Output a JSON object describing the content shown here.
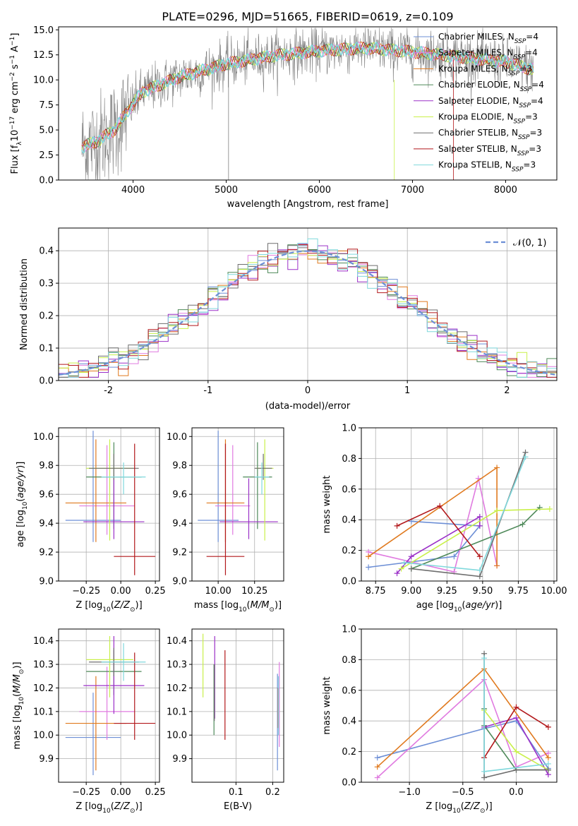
{
  "figure_title": "PLATE=0296, MJD=51665, FIBERID=0619, z=0.109",
  "colors": {
    "chabrier_miles": "#6d8fd6",
    "salpeter_miles": "#e07be0",
    "kroupa_miles": "#e07a1f",
    "chabrier_elodie": "#4f8a5a",
    "salpeter_elodie": "#9b30c8",
    "kroupa_elodie": "#c9f04a",
    "chabrier_stelib": "#6e6e6e",
    "salpeter_stelib": "#b2181b",
    "kroupa_stelib": "#7fd8dc",
    "gaussian": "#6d8fd6",
    "grid": "#b0b0b0"
  },
  "chart_data": [
    {
      "id": "spectrum",
      "type": "line",
      "title": "PLATE=0296, MJD=51665, FIBERID=0619, z=0.109",
      "xlabel": "wavelength [Angstrom, rest frame]",
      "ylabel": "Flux [f_λ 10^-17 erg cm^-2 s^-1 A^-1]",
      "xlim": [
        3200,
        8550
      ],
      "ylim": [
        0,
        15.3
      ],
      "xticks": [
        4000,
        5000,
        6000,
        7000,
        8000
      ],
      "yticks": [
        0.0,
        2.5,
        5.0,
        7.5,
        10.0,
        12.5,
        15.0
      ],
      "grid": false,
      "legend_position": "top-right",
      "legend": [
        {
          "label": "Chabrier MILES, N",
          "sub": "SSP",
          "tail": "=4",
          "color_key": "chabrier_miles"
        },
        {
          "label": "Salpeter MILES, N",
          "sub": "SSP",
          "tail": "=4",
          "color_key": "salpeter_miles"
        },
        {
          "label": "Kroupa MILES, N",
          "sub": "SSP",
          "tail": "=3",
          "color_key": "kroupa_miles"
        },
        {
          "label": "Chabrier ELODIE, N",
          "sub": "SSP",
          "tail": "=4",
          "color_key": "chabrier_elodie"
        },
        {
          "label": "Salpeter ELODIE, N",
          "sub": "SSP",
          "tail": "=4",
          "color_key": "salpeter_elodie"
        },
        {
          "label": "Kroupa ELODIE, N",
          "sub": "SSP",
          "tail": "=3",
          "color_key": "kroupa_elodie"
        },
        {
          "label": "Chabrier STELIB, N",
          "sub": "SSP",
          "tail": "=3",
          "color_key": "chabrier_stelib"
        },
        {
          "label": "Salpeter STELIB, N",
          "sub": "SSP",
          "tail": "=3",
          "color_key": "salpeter_stelib"
        },
        {
          "label": "Kroupa STELIB, N",
          "sub": "SSP",
          "tail": "=3",
          "color_key": "kroupa_stelib"
        }
      ],
      "continuum": [
        [
          3450,
          3.3
        ],
        [
          3600,
          3.8
        ],
        [
          3800,
          5.0
        ],
        [
          3950,
          7.0
        ],
        [
          4100,
          8.8
        ],
        [
          4500,
          10.3
        ],
        [
          5000,
          11.6
        ],
        [
          5500,
          12.4
        ],
        [
          6000,
          12.9
        ],
        [
          6500,
          13.2
        ],
        [
          7000,
          12.8
        ],
        [
          7500,
          12.3
        ],
        [
          8000,
          11.8
        ],
        [
          8300,
          11.0
        ]
      ]
    },
    {
      "id": "residuals",
      "type": "line",
      "xlabel": "(data-model)/error",
      "ylabel": "Normed distribution",
      "xlim": [
        -2.5,
        2.5
      ],
      "ylim": [
        0,
        0.47
      ],
      "xticks": [
        -2,
        -1,
        0,
        1,
        2
      ],
      "yticks": [
        0.0,
        0.1,
        0.2,
        0.3,
        0.4
      ],
      "grid": true,
      "legend_position": "top-right",
      "legend": [
        {
          "label": "𝒩(0, 1)",
          "color_key": "gaussian",
          "dashed": true
        }
      ]
    },
    {
      "id": "age_vs_Z",
      "type": "scatter",
      "xlabel": "Z [log10(Z/Z⊙)]",
      "ylabel": "age [log10(age/yr)]",
      "xlim": [
        -0.45,
        0.28
      ],
      "ylim": [
        9.0,
        10.06
      ],
      "xticks": [
        -0.25,
        0.0,
        0.25
      ],
      "xticklabels": [
        "−0.25",
        "0.00",
        "0.25"
      ],
      "yticks": [
        9.0,
        9.2,
        9.4,
        9.6,
        9.8,
        10.0
      ],
      "yticklabels": [
        "9.0",
        "9.2",
        "9.4",
        "9.6",
        "9.8",
        "10.0"
      ],
      "grid": true,
      "points": [
        {
          "c": "chabrier_miles",
          "x": -0.2,
          "xerr": 0.2,
          "y": 9.42,
          "yerr": [
            0.15,
            0.62
          ]
        },
        {
          "c": "salpeter_miles",
          "x": -0.1,
          "xerr": 0.2,
          "y": 9.52,
          "yerr": [
            0.2,
            0.42
          ]
        },
        {
          "c": "kroupa_miles",
          "x": -0.18,
          "xerr": 0.22,
          "y": 9.54,
          "yerr": [
            0.27,
            0.44
          ]
        },
        {
          "c": "chabrier_elodie",
          "x": -0.05,
          "xerr": 0.2,
          "y": 9.72,
          "yerr": [
            0.36,
            0.24
          ]
        },
        {
          "c": "salpeter_elodie",
          "x": -0.05,
          "xerr": 0.22,
          "y": 9.41,
          "yerr": [
            0.12,
            0.3
          ]
        },
        {
          "c": "kroupa_elodie",
          "x": -0.08,
          "xerr": 0.17,
          "y": 9.78,
          "yerr": [
            0.5,
            0.2
          ]
        },
        {
          "c": "chabrier_stelib",
          "x": -0.05,
          "xerr": 0.18,
          "y": 9.78,
          "yerr": [
            0.08,
            0.1
          ]
        },
        {
          "c": "salpeter_stelib",
          "x": 0.1,
          "xerr": 0.15,
          "y": 9.17,
          "yerr": [
            0.13,
            0.78
          ]
        },
        {
          "c": "kroupa_stelib",
          "x": 0.02,
          "xerr": 0.16,
          "y": 9.72,
          "yerr": [
            0.12,
            0.1
          ]
        }
      ]
    },
    {
      "id": "age_vs_mass",
      "type": "scatter",
      "xlabel": "mass [log10(M/M⊙)]",
      "ylabel": "",
      "xlim": [
        9.82,
        10.45
      ],
      "ylim": [
        9.0,
        10.06
      ],
      "xticks": [
        10.0,
        10.25
      ],
      "xticklabels": [
        "10.00",
        "10.25"
      ],
      "yticks": [
        9.0,
        9.2,
        9.4,
        9.6,
        9.8,
        10.0
      ],
      "yticklabels": [
        "9.0",
        "9.2",
        "9.4",
        "9.6",
        "9.8",
        "10.0"
      ],
      "grid": true,
      "points": [
        {
          "c": "chabrier_miles",
          "x": 10.0,
          "xerr": 0.14,
          "y": 9.42,
          "yerr": [
            0.15,
            0.62
          ]
        },
        {
          "c": "salpeter_miles",
          "x": 10.1,
          "xerr": 0.12,
          "y": 9.52,
          "yerr": [
            0.2,
            0.42
          ]
        },
        {
          "c": "kroupa_miles",
          "x": 10.05,
          "xerr": 0.13,
          "y": 9.54,
          "yerr": [
            0.27,
            0.44
          ]
        },
        {
          "c": "chabrier_elodie",
          "x": 10.27,
          "xerr": 0.1,
          "y": 9.72,
          "yerr": [
            0.36,
            0.24
          ]
        },
        {
          "c": "salpeter_elodie",
          "x": 10.21,
          "xerr": 0.2,
          "y": 9.41,
          "yerr": [
            0.12,
            0.3
          ]
        },
        {
          "c": "kroupa_elodie",
          "x": 10.32,
          "xerr": 0.06,
          "y": 9.78,
          "yerr": [
            0.5,
            0.2
          ]
        },
        {
          "c": "chabrier_stelib",
          "x": 10.31,
          "xerr": 0.06,
          "y": 9.78,
          "yerr": [
            0.08,
            0.1
          ]
        },
        {
          "c": "salpeter_stelib",
          "x": 10.05,
          "xerr": 0.13,
          "y": 9.17,
          "yerr": [
            0.13,
            0.78
          ]
        },
        {
          "c": "kroupa_stelib",
          "x": 10.3,
          "xerr": 0.05,
          "y": 9.72,
          "yerr": [
            0.12,
            0.1
          ]
        }
      ]
    },
    {
      "id": "weight_vs_age",
      "type": "line",
      "xlabel": "age [log10(age/yr)]",
      "ylabel": "mass weight",
      "xlim": [
        8.65,
        10.02
      ],
      "ylim": [
        0.0,
        1.0
      ],
      "xticks": [
        8.75,
        9.0,
        9.25,
        9.5,
        9.75,
        10.0
      ],
      "xticklabels": [
        "8.75",
        "9.00",
        "9.25",
        "9.50",
        "9.75",
        "10.00"
      ],
      "yticks": [
        0.0,
        0.2,
        0.4,
        0.6,
        0.8,
        1.0
      ],
      "yticklabels": [
        "0.0",
        "0.2",
        "0.4",
        "0.6",
        "0.8",
        "1.0"
      ],
      "grid": true,
      "series": [
        {
          "c": "chabrier_miles",
          "x": [
            8.7,
            9.3,
            9.48,
            9.0
          ],
          "y": [
            0.09,
            0.16,
            0.36,
            0.39
          ]
        },
        {
          "c": "salpeter_miles",
          "x": [
            8.7,
            9.3,
            9.47,
            9.6
          ],
          "y": [
            0.19,
            0.06,
            0.67,
            0.1
          ]
        },
        {
          "c": "kroupa_miles",
          "x": [
            8.7,
            9.6,
            9.6
          ],
          "y": [
            0.16,
            0.74,
            0.1
          ]
        },
        {
          "c": "chabrier_elodie",
          "x": [
            9.0,
            9.78,
            9.9
          ],
          "y": [
            0.08,
            0.37,
            0.48
          ]
        },
        {
          "c": "salpeter_elodie",
          "x": [
            8.9,
            9.0,
            9.48,
            9.48
          ],
          "y": [
            0.05,
            0.16,
            0.42,
            0.36
          ]
        },
        {
          "c": "kroupa_elodie",
          "x": [
            8.93,
            9.6,
            9.97
          ],
          "y": [
            0.08,
            0.46,
            0.47
          ]
        },
        {
          "c": "chabrier_stelib",
          "x": [
            9.0,
            9.48,
            9.8
          ],
          "y": [
            0.08,
            0.03,
            0.84
          ]
        },
        {
          "c": "salpeter_stelib",
          "x": [
            8.9,
            9.2,
            9.48
          ],
          "y": [
            0.36,
            0.49,
            0.16
          ]
        },
        {
          "c": "kroupa_stelib",
          "x": [
            8.95,
            9.48,
            9.8
          ],
          "y": [
            0.12,
            0.07,
            0.81
          ]
        }
      ]
    },
    {
      "id": "mass_vs_Z",
      "type": "scatter",
      "xlabel": "Z [log10(Z/Z⊙)]",
      "ylabel": "mass [log10(M/M⊙)]",
      "xlim": [
        -0.45,
        0.28
      ],
      "ylim": [
        9.8,
        10.45
      ],
      "xticks": [
        -0.25,
        0.0,
        0.25
      ],
      "xticklabels": [
        "−0.25",
        "0.00",
        "0.25"
      ],
      "yticks": [
        9.9,
        10.0,
        10.1,
        10.2,
        10.3,
        10.4
      ],
      "yticklabels": [
        "9.9",
        "10.0",
        "10.1",
        "10.2",
        "10.3",
        "10.4"
      ],
      "grid": true,
      "points": [
        {
          "c": "chabrier_miles",
          "x": -0.2,
          "xerr": 0.2,
          "y": 9.99,
          "yerr": [
            0.16,
            0.19
          ]
        },
        {
          "c": "salpeter_miles",
          "x": -0.1,
          "xerr": 0.2,
          "y": 10.1,
          "yerr": [
            0.12,
            0.19
          ]
        },
        {
          "c": "kroupa_miles",
          "x": -0.18,
          "xerr": 0.22,
          "y": 10.05,
          "yerr": [
            0.2,
            0.2
          ]
        },
        {
          "c": "chabrier_elodie",
          "x": -0.05,
          "xerr": 0.2,
          "y": 10.27,
          "yerr": [
            0.1,
            0.09
          ]
        },
        {
          "c": "salpeter_elodie",
          "x": -0.05,
          "xerr": 0.22,
          "y": 10.21,
          "yerr": [
            0.12,
            0.21
          ]
        },
        {
          "c": "kroupa_elodie",
          "x": -0.08,
          "xerr": 0.17,
          "y": 10.32,
          "yerr": [
            0.16,
            0.1
          ]
        },
        {
          "c": "chabrier_stelib",
          "x": -0.05,
          "xerr": 0.18,
          "y": 10.31,
          "yerr": [
            0.06,
            0.06
          ]
        },
        {
          "c": "salpeter_stelib",
          "x": 0.1,
          "xerr": 0.15,
          "y": 10.05,
          "yerr": [
            0.07,
            0.3
          ]
        },
        {
          "c": "kroupa_stelib",
          "x": 0.02,
          "xerr": 0.16,
          "y": 10.31,
          "yerr": [
            0.08,
            0.08
          ]
        }
      ]
    },
    {
      "id": "mass_vs_ebv",
      "type": "scatter",
      "xlabel": "E(B-V)",
      "ylabel": "",
      "xlim": [
        -0.02,
        0.23
      ],
      "ylim": [
        9.8,
        10.45
      ],
      "xticks": [
        0.1,
        0.2
      ],
      "xticklabels": [
        "0.1",
        "0.2"
      ],
      "yticks": [
        9.9,
        10.0,
        10.1,
        10.2,
        10.3,
        10.4
      ],
      "yticklabels": [
        "9.9",
        "10.0",
        "10.1",
        "10.2",
        "10.3",
        "10.4"
      ],
      "grid": true,
      "points": [
        {
          "c": "chabrier_miles",
          "x": 0.213,
          "y": 10.15,
          "yerr": [
            0.3,
            0.11
          ]
        },
        {
          "c": "salpeter_miles",
          "x": 0.218,
          "y": 10.12,
          "yerr": [
            0.17,
            0.19
          ]
        },
        {
          "c": "kroupa_miles",
          "x": 0.215,
          "y": 10.1,
          "yerr": [
            0.07,
            0.1
          ]
        },
        {
          "c": "chabrier_elodie",
          "x": 0.04,
          "y": 10.2,
          "yerr": [
            0.2,
            0.1
          ]
        },
        {
          "c": "salpeter_elodie",
          "x": 0.042,
          "y": 10.25,
          "yerr": [
            0.18,
            0.17
          ]
        },
        {
          "c": "kroupa_elodie",
          "x": 0.01,
          "y": 10.3,
          "yerr": [
            0.14,
            0.13
          ]
        },
        {
          "c": "chabrier_stelib",
          "x": 0.041,
          "y": 10.1,
          "yerr": [
            0.04,
            0.2
          ]
        },
        {
          "c": "salpeter_stelib",
          "x": 0.07,
          "y": 10.16,
          "yerr": [
            0.18,
            0.2
          ]
        },
        {
          "c": "kroupa_stelib",
          "x": 0.216,
          "y": 10.15,
          "yerr": [
            0.15,
            0.1
          ]
        }
      ]
    },
    {
      "id": "weight_vs_Z",
      "type": "line",
      "xlabel": "Z [log10(Z/Z⊙)]",
      "ylabel": "mass weight",
      "xlim": [
        -1.45,
        0.38
      ],
      "ylim": [
        0.0,
        1.0
      ],
      "xticks": [
        -1.0,
        -0.5,
        0.0
      ],
      "xticklabels": [
        "−1.0",
        "−0.5",
        "0.0"
      ],
      "yticks": [
        0.0,
        0.2,
        0.4,
        0.6,
        0.8,
        1.0
      ],
      "yticklabels": [
        "0.0",
        "0.2",
        "0.4",
        "0.6",
        "0.8",
        "1.0"
      ],
      "grid": true,
      "series": [
        {
          "c": "chabrier_miles",
          "x": [
            -1.3,
            -0.3,
            0.0,
            0.3
          ],
          "y": [
            0.16,
            0.35,
            0.4,
            0.09
          ]
        },
        {
          "c": "salpeter_miles",
          "x": [
            -1.3,
            -0.3,
            0.0,
            0.3
          ],
          "y": [
            0.03,
            0.67,
            0.1,
            0.19
          ]
        },
        {
          "c": "kroupa_miles",
          "x": [
            -1.3,
            -0.3,
            0.3
          ],
          "y": [
            0.1,
            0.74,
            0.16
          ]
        },
        {
          "c": "chabrier_elodie",
          "x": [
            -0.3,
            -0.3,
            0.0,
            0.3
          ],
          "y": [
            0.48,
            0.37,
            0.08,
            0.08
          ]
        },
        {
          "c": "salpeter_elodie",
          "x": [
            -0.3,
            0.0,
            0.3
          ],
          "y": [
            0.36,
            0.42,
            0.05
          ]
        },
        {
          "c": "kroupa_elodie",
          "x": [
            -0.3,
            0.0,
            0.3
          ],
          "y": [
            0.47,
            0.2,
            0.08
          ]
        },
        {
          "c": "chabrier_stelib",
          "x": [
            -0.3,
            -0.3,
            0.0,
            0.3
          ],
          "y": [
            0.84,
            0.03,
            0.08,
            0.08
          ]
        },
        {
          "c": "salpeter_stelib",
          "x": [
            -0.3,
            0.0,
            0.3
          ],
          "y": [
            0.16,
            0.49,
            0.36
          ]
        },
        {
          "c": "kroupa_stelib",
          "x": [
            -0.3,
            -0.3,
            0.3
          ],
          "y": [
            0.81,
            0.07,
            0.12
          ]
        }
      ]
    }
  ]
}
